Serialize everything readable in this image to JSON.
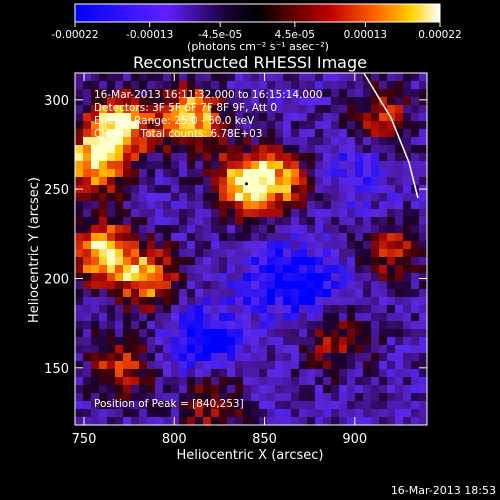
{
  "chart_data": {
    "type": "heatmap",
    "title": "Reconstructed RHESSI Image",
    "xlabel": "Heliocentric X (arcsec)",
    "ylabel": "Heliocentric Y (arcsec)",
    "xlim": [
      745,
      940
    ],
    "ylim": [
      118,
      315
    ],
    "x_ticks": [
      "750",
      "800",
      "850",
      "900"
    ],
    "y_ticks": [
      "150",
      "200",
      "250",
      "300"
    ],
    "colorbar": {
      "min": -0.00022,
      "max": 0.00022,
      "tick_labels": [
        "-0.00022",
        "-0.00013",
        "-4.5e-05",
        "4.5e-05",
        "0.00013",
        "0.00022"
      ],
      "units": "(photons cm⁻² s⁻¹ asec⁻²)"
    },
    "annotations": [
      "16-Mar-2013 16:11:32.000 to 16:15:14.000",
      "Detectors: 3F 5F 6F 7F 8F 9F, Att 0",
      "Energy Range: 25.0 - 50.0 keV",
      "Clean     Total counts: 6.78E+03"
    ],
    "peak_label": "Position of Peak = [840,253]",
    "peak": [
      840,
      253
    ],
    "bright_regions": [
      {
        "x": 770,
        "y": 285,
        "level": 1.0
      },
      {
        "x": 810,
        "y": 290,
        "level": 0.95
      },
      {
        "x": 840,
        "y": 253,
        "level": 1.0
      },
      {
        "x": 755,
        "y": 265,
        "level": 0.9
      },
      {
        "x": 760,
        "y": 215,
        "level": 0.95
      },
      {
        "x": 785,
        "y": 200,
        "level": 0.8
      },
      {
        "x": 860,
        "y": 255,
        "level": 0.6
      },
      {
        "x": 915,
        "y": 290,
        "level": 0.55
      },
      {
        "x": 920,
        "y": 215,
        "level": 0.55
      },
      {
        "x": 890,
        "y": 165,
        "level": 0.5
      },
      {
        "x": 770,
        "y": 150,
        "level": 0.6
      },
      {
        "x": 820,
        "y": 130,
        "level": 0.5
      }
    ],
    "dark_regions": [
      {
        "x": 815,
        "y": 165,
        "level": -0.9
      },
      {
        "x": 855,
        "y": 200,
        "level": -0.7
      },
      {
        "x": 880,
        "y": 195,
        "level": -0.6
      },
      {
        "x": 900,
        "y": 260,
        "level": -0.5
      }
    ],
    "limb_curve": [
      [
        905,
        315
      ],
      [
        920,
        290
      ],
      [
        930,
        265
      ],
      [
        935,
        245
      ]
    ]
  },
  "footer": {
    "timestamp": "16-Mar-2013 18:53"
  }
}
